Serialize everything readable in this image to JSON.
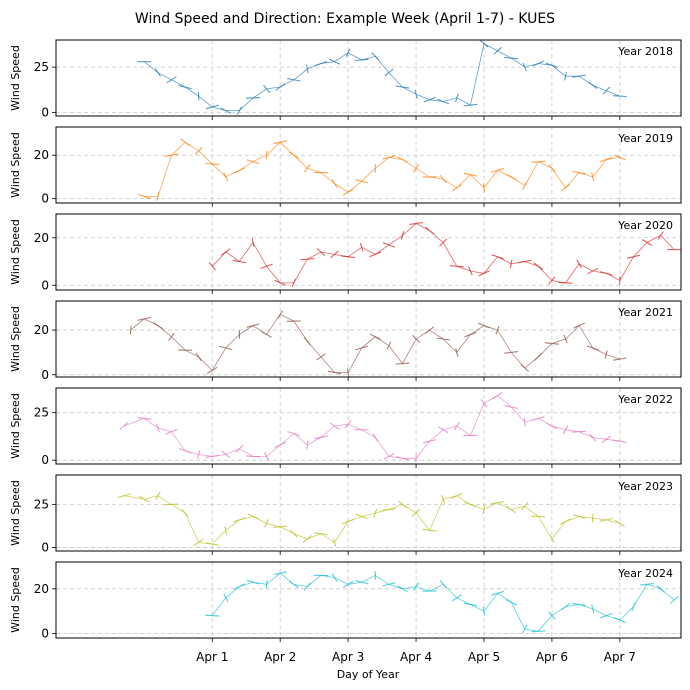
{
  "chart_data": {
    "type": "line",
    "title": "Wind Speed and Direction: Example Week (April 1-7) - KUES",
    "xlabel": "Day of Year",
    "ylabel": "Wind Speed",
    "x_range": [
      -1.3,
      7.9
    ],
    "x_ticks": [
      {
        "v": 1,
        "label": "Apr 1"
      },
      {
        "v": 2,
        "label": "Apr 2"
      },
      {
        "v": 3,
        "label": "Apr 3"
      },
      {
        "v": 4,
        "label": "Apr 4"
      },
      {
        "v": 5,
        "label": "Apr 5"
      },
      {
        "v": 6,
        "label": "Apr 6"
      },
      {
        "v": 7,
        "label": "Apr 7"
      }
    ],
    "grid": true,
    "panels": [
      {
        "label": "Year 2018",
        "color": "#1f77b4",
        "ylim": [
          -2,
          40
        ],
        "yticks": [
          0,
          25
        ],
        "points": [
          [
            0,
            28
          ],
          [
            0.2,
            22
          ],
          [
            0.4,
            18
          ],
          [
            0.6,
            14
          ],
          [
            0.8,
            9
          ],
          [
            1.0,
            3
          ],
          [
            1.2,
            1
          ],
          [
            1.4,
            1
          ],
          [
            1.6,
            8
          ],
          [
            1.8,
            13
          ],
          [
            2.0,
            14
          ],
          [
            2.2,
            18
          ],
          [
            2.4,
            24
          ],
          [
            2.6,
            27
          ],
          [
            2.8,
            28
          ],
          [
            3.0,
            33
          ],
          [
            3.2,
            29
          ],
          [
            3.4,
            31
          ],
          [
            3.6,
            22
          ],
          [
            3.8,
            14
          ],
          [
            4.0,
            10
          ],
          [
            4.2,
            7
          ],
          [
            4.4,
            6
          ],
          [
            4.6,
            8
          ],
          [
            4.8,
            4
          ],
          [
            5.0,
            38
          ],
          [
            5.2,
            34
          ],
          [
            5.4,
            30
          ],
          [
            5.6,
            25
          ],
          [
            5.8,
            27
          ],
          [
            6.0,
            26
          ],
          [
            6.2,
            20
          ],
          [
            6.4,
            20
          ],
          [
            6.6,
            15
          ],
          [
            6.8,
            12
          ],
          [
            7.0,
            9
          ]
        ]
      },
      {
        "label": "Year 2019",
        "color": "#ff7f0e",
        "ylim": [
          -2,
          33
        ],
        "yticks": [
          0,
          20
        ],
        "points": [
          [
            0,
            1
          ],
          [
            0.2,
            1
          ],
          [
            0.4,
            20
          ],
          [
            0.6,
            26
          ],
          [
            0.8,
            22
          ],
          [
            1.0,
            16
          ],
          [
            1.2,
            10
          ],
          [
            1.4,
            13
          ],
          [
            1.6,
            17
          ],
          [
            1.8,
            20
          ],
          [
            2.0,
            26
          ],
          [
            2.2,
            20
          ],
          [
            2.4,
            14
          ],
          [
            2.6,
            12
          ],
          [
            2.8,
            7
          ],
          [
            3.0,
            3
          ],
          [
            3.2,
            8
          ],
          [
            3.4,
            14
          ],
          [
            3.6,
            19
          ],
          [
            3.8,
            18
          ],
          [
            4.0,
            14
          ],
          [
            4.2,
            10
          ],
          [
            4.4,
            9
          ],
          [
            4.6,
            5
          ],
          [
            4.8,
            11
          ],
          [
            5.0,
            5
          ],
          [
            5.2,
            13
          ],
          [
            5.4,
            10
          ],
          [
            5.6,
            6
          ],
          [
            5.8,
            17
          ],
          [
            6.0,
            14
          ],
          [
            6.2,
            5
          ],
          [
            6.4,
            12
          ],
          [
            6.6,
            10
          ],
          [
            6.8,
            18
          ],
          [
            7.0,
            19
          ]
        ]
      },
      {
        "label": "Year 2020",
        "color": "#d62728",
        "ylim": [
          -2,
          30
        ],
        "yticks": [
          0,
          20
        ],
        "points": [
          [
            1.0,
            8
          ],
          [
            1.2,
            14
          ],
          [
            1.4,
            10
          ],
          [
            1.6,
            18
          ],
          [
            1.8,
            8
          ],
          [
            2.0,
            1
          ],
          [
            2.2,
            1
          ],
          [
            2.4,
            11
          ],
          [
            2.6,
            14
          ],
          [
            2.8,
            13
          ],
          [
            3.0,
            12
          ],
          [
            3.2,
            16
          ],
          [
            3.4,
            13
          ],
          [
            3.6,
            17
          ],
          [
            3.8,
            21
          ],
          [
            4.0,
            26
          ],
          [
            4.2,
            23
          ],
          [
            4.4,
            18
          ],
          [
            4.6,
            8
          ],
          [
            4.8,
            6
          ],
          [
            5.0,
            5
          ],
          [
            5.2,
            12
          ],
          [
            5.4,
            9
          ],
          [
            5.6,
            10
          ],
          [
            5.8,
            8
          ],
          [
            6.0,
            2
          ],
          [
            6.2,
            1
          ],
          [
            6.4,
            9
          ],
          [
            6.6,
            6
          ],
          [
            6.8,
            5
          ],
          [
            7.0,
            2
          ],
          [
            7.2,
            12
          ],
          [
            7.4,
            18
          ],
          [
            7.6,
            21
          ],
          [
            7.8,
            15
          ]
        ]
      },
      {
        "label": "Year 2021",
        "color": "#8c564b",
        "ylim": [
          -1,
          33
        ],
        "yticks": [
          0,
          20
        ],
        "points": [
          [
            -0.2,
            20
          ],
          [
            0,
            25
          ],
          [
            0.2,
            22
          ],
          [
            0.4,
            17
          ],
          [
            0.6,
            11
          ],
          [
            0.8,
            8
          ],
          [
            1.0,
            2
          ],
          [
            1.2,
            12
          ],
          [
            1.4,
            18
          ],
          [
            1.6,
            22
          ],
          [
            1.8,
            18
          ],
          [
            2.0,
            27
          ],
          [
            2.2,
            24
          ],
          [
            2.4,
            15
          ],
          [
            2.6,
            8
          ],
          [
            2.8,
            1
          ],
          [
            3.0,
            1
          ],
          [
            3.2,
            12
          ],
          [
            3.4,
            17
          ],
          [
            3.6,
            13
          ],
          [
            3.8,
            5
          ],
          [
            4.0,
            16
          ],
          [
            4.2,
            20
          ],
          [
            4.4,
            16
          ],
          [
            4.6,
            10
          ],
          [
            4.8,
            18
          ],
          [
            5.0,
            22
          ],
          [
            5.2,
            20
          ],
          [
            5.4,
            10
          ],
          [
            5.6,
            3
          ],
          [
            5.8,
            8
          ],
          [
            6.0,
            14
          ],
          [
            6.2,
            16
          ],
          [
            6.4,
            22
          ],
          [
            6.6,
            12
          ],
          [
            6.8,
            9
          ],
          [
            7.0,
            7
          ]
        ]
      },
      {
        "label": "Year 2022",
        "color": "#e377c2",
        "ylim": [
          -2,
          38
        ],
        "yticks": [
          0,
          25
        ],
        "points": [
          [
            -0.3,
            18
          ],
          [
            0,
            22
          ],
          [
            0.2,
            17
          ],
          [
            0.4,
            15
          ],
          [
            0.6,
            5
          ],
          [
            0.8,
            3
          ],
          [
            1.0,
            2
          ],
          [
            1.2,
            3
          ],
          [
            1.4,
            6
          ],
          [
            1.6,
            2
          ],
          [
            1.8,
            2
          ],
          [
            2.0,
            8
          ],
          [
            2.2,
            14
          ],
          [
            2.4,
            8
          ],
          [
            2.6,
            12
          ],
          [
            2.8,
            18
          ],
          [
            3.0,
            19
          ],
          [
            3.2,
            16
          ],
          [
            3.4,
            12
          ],
          [
            3.6,
            2
          ],
          [
            3.8,
            1
          ],
          [
            4.0,
            1
          ],
          [
            4.2,
            10
          ],
          [
            4.4,
            16
          ],
          [
            4.6,
            18
          ],
          [
            4.8,
            13
          ],
          [
            5.0,
            30
          ],
          [
            5.2,
            34
          ],
          [
            5.4,
            28
          ],
          [
            5.6,
            20
          ],
          [
            5.8,
            22
          ],
          [
            6.0,
            18
          ],
          [
            6.2,
            16
          ],
          [
            6.4,
            15
          ],
          [
            6.6,
            12
          ],
          [
            6.8,
            11
          ],
          [
            7.0,
            10
          ]
        ]
      },
      {
        "label": "Year 2023",
        "color": "#bcbd22",
        "ylim": [
          -2,
          42
        ],
        "yticks": [
          0,
          25
        ],
        "points": [
          [
            -0.3,
            30
          ],
          [
            0,
            28
          ],
          [
            0.2,
            30
          ],
          [
            0.4,
            25
          ],
          [
            0.6,
            20
          ],
          [
            0.8,
            3
          ],
          [
            1.0,
            2
          ],
          [
            1.2,
            10
          ],
          [
            1.4,
            16
          ],
          [
            1.6,
            18
          ],
          [
            1.8,
            14
          ],
          [
            2.0,
            12
          ],
          [
            2.2,
            8
          ],
          [
            2.4,
            5
          ],
          [
            2.6,
            8
          ],
          [
            2.8,
            3
          ],
          [
            3.0,
            15
          ],
          [
            3.2,
            18
          ],
          [
            3.4,
            20
          ],
          [
            3.6,
            22
          ],
          [
            3.8,
            25
          ],
          [
            4.0,
            20
          ],
          [
            4.2,
            10
          ],
          [
            4.4,
            28
          ],
          [
            4.6,
            30
          ],
          [
            4.8,
            25
          ],
          [
            5.0,
            22
          ],
          [
            5.2,
            26
          ],
          [
            5.4,
            22
          ],
          [
            5.6,
            24
          ],
          [
            5.8,
            18
          ],
          [
            6.0,
            5
          ],
          [
            6.2,
            15
          ],
          [
            6.4,
            18
          ],
          [
            6.6,
            17
          ],
          [
            6.8,
            16
          ],
          [
            7.0,
            14
          ]
        ]
      },
      {
        "label": "Year 2024",
        "color": "#17becf",
        "ylim": [
          -2,
          32
        ],
        "yticks": [
          0,
          20
        ],
        "points": [
          [
            1.0,
            8
          ],
          [
            1.2,
            16
          ],
          [
            1.4,
            21
          ],
          [
            1.6,
            23
          ],
          [
            1.8,
            22
          ],
          [
            2.0,
            27
          ],
          [
            2.2,
            22
          ],
          [
            2.4,
            21
          ],
          [
            2.6,
            26
          ],
          [
            2.8,
            25
          ],
          [
            3.0,
            22
          ],
          [
            3.2,
            23
          ],
          [
            3.4,
            26
          ],
          [
            3.6,
            22
          ],
          [
            3.8,
            20
          ],
          [
            4.0,
            21
          ],
          [
            4.2,
            19
          ],
          [
            4.4,
            22
          ],
          [
            4.6,
            16
          ],
          [
            4.8,
            13
          ],
          [
            5.0,
            10
          ],
          [
            5.2,
            18
          ],
          [
            5.4,
            14
          ],
          [
            5.6,
            2
          ],
          [
            5.8,
            1
          ],
          [
            6.0,
            8
          ],
          [
            6.2,
            12
          ],
          [
            6.4,
            13
          ],
          [
            6.6,
            11
          ],
          [
            6.8,
            8
          ],
          [
            7.0,
            6
          ],
          [
            7.2,
            12
          ],
          [
            7.4,
            22
          ],
          [
            7.6,
            20
          ],
          [
            7.8,
            15
          ]
        ]
      }
    ]
  }
}
